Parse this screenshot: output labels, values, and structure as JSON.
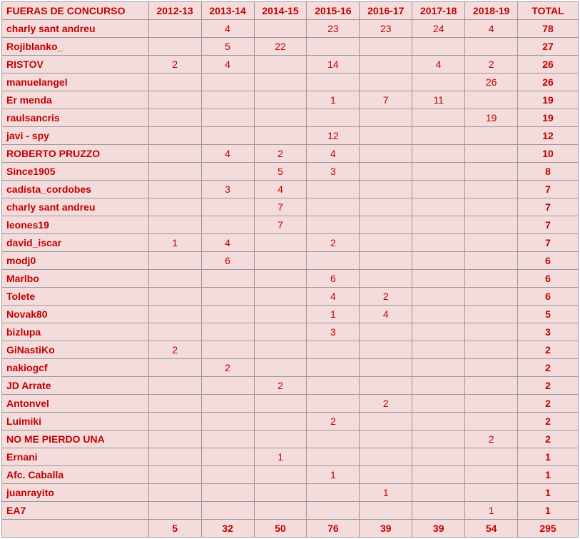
{
  "table": {
    "header_first": "FUERAS DE CONCURSO",
    "years": [
      "2012-13",
      "2013-14",
      "2014-15",
      "2015-16",
      "2016-17",
      "2017-18",
      "2018-19"
    ],
    "header_total": "TOTAL",
    "rows": [
      {
        "name": "charly sant andreu",
        "y": [
          "",
          "4",
          "",
          "23",
          "23",
          "24",
          "4"
        ],
        "total": "78"
      },
      {
        "name": "Rojiblanko_",
        "y": [
          "",
          "5",
          "22",
          "",
          "",
          "",
          ""
        ],
        "total": "27"
      },
      {
        "name": "RISTOV",
        "y": [
          "2",
          "4",
          "",
          "14",
          "",
          "4",
          "2"
        ],
        "total": "26"
      },
      {
        "name": "manuelangel",
        "y": [
          "",
          "",
          "",
          "",
          "",
          "",
          "26"
        ],
        "total": "26"
      },
      {
        "name": "Er menda",
        "y": [
          "",
          "",
          "",
          "1",
          "7",
          "11",
          ""
        ],
        "total": "19"
      },
      {
        "name": "raulsancris",
        "y": [
          "",
          "",
          "",
          "",
          "",
          "",
          "19"
        ],
        "total": "19"
      },
      {
        "name": "javi - spy",
        "y": [
          "",
          "",
          "",
          "12",
          "",
          "",
          ""
        ],
        "total": "12"
      },
      {
        "name": "ROBERTO PRUZZO",
        "y": [
          "",
          "4",
          "2",
          "4",
          "",
          "",
          ""
        ],
        "total": "10"
      },
      {
        "name": "Since1905",
        "y": [
          "",
          "",
          "5",
          "3",
          "",
          "",
          ""
        ],
        "total": "8"
      },
      {
        "name": "cadista_cordobes",
        "y": [
          "",
          "3",
          "4",
          "",
          "",
          "",
          ""
        ],
        "total": "7"
      },
      {
        "name": "charly sant andreu",
        "y": [
          "",
          "",
          "7",
          "",
          "",
          "",
          ""
        ],
        "total": "7"
      },
      {
        "name": "leones19",
        "y": [
          "",
          "",
          "7",
          "",
          "",
          "",
          ""
        ],
        "total": "7"
      },
      {
        "name": "david_iscar",
        "y": [
          "1",
          "4",
          "",
          "2",
          "",
          "",
          ""
        ],
        "total": "7"
      },
      {
        "name": "modj0",
        "y": [
          "",
          "6",
          "",
          "",
          "",
          "",
          ""
        ],
        "total": "6"
      },
      {
        "name": "Marlbo",
        "y": [
          "",
          "",
          "",
          "6",
          "",
          "",
          ""
        ],
        "total": "6"
      },
      {
        "name": "Tolete",
        "y": [
          "",
          "",
          "",
          "4",
          "2",
          "",
          ""
        ],
        "total": "6"
      },
      {
        "name": "Novak80",
        "y": [
          "",
          "",
          "",
          "1",
          "4",
          "",
          ""
        ],
        "total": "5"
      },
      {
        "name": "bizlupa",
        "y": [
          "",
          "",
          "",
          "3",
          "",
          "",
          ""
        ],
        "total": "3"
      },
      {
        "name": "GiNastiKo",
        "y": [
          "2",
          "",
          "",
          "",
          "",
          "",
          ""
        ],
        "total": "2"
      },
      {
        "name": "nakiogcf",
        "y": [
          "",
          "2",
          "",
          "",
          "",
          "",
          ""
        ],
        "total": "2"
      },
      {
        "name": "JD Arrate",
        "y": [
          "",
          "",
          "2",
          "",
          "",
          "",
          ""
        ],
        "total": "2"
      },
      {
        "name": "Antonvel",
        "y": [
          "",
          "",
          "",
          "",
          "2",
          "",
          ""
        ],
        "total": "2"
      },
      {
        "name": "Luimiki",
        "y": [
          "",
          "",
          "",
          "2",
          "",
          "",
          ""
        ],
        "total": "2"
      },
      {
        "name": "NO ME PIERDO UNA",
        "y": [
          "",
          "",
          "",
          "",
          "",
          "",
          "2"
        ],
        "total": "2"
      },
      {
        "name": "Ernani",
        "y": [
          "",
          "",
          "1",
          "",
          "",
          "",
          ""
        ],
        "total": "1"
      },
      {
        "name": "Afc. Caballa",
        "y": [
          "",
          "",
          "",
          "1",
          "",
          "",
          ""
        ],
        "total": "1"
      },
      {
        "name": "juanrayito",
        "y": [
          "",
          "",
          "",
          "",
          "1",
          "",
          ""
        ],
        "total": "1"
      },
      {
        "name": "EA7",
        "y": [
          "",
          "",
          "",
          "",
          "",
          "",
          "1"
        ],
        "total": "1"
      }
    ],
    "footer": {
      "name": "",
      "y": [
        "5",
        "32",
        "50",
        "76",
        "39",
        "39",
        "54"
      ],
      "total": "295"
    },
    "colors": {
      "text": "#c00000",
      "bg": "#f5dcdc",
      "border": "#999999"
    }
  }
}
